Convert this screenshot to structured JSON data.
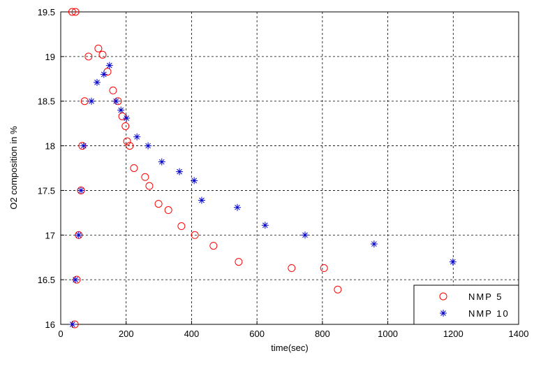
{
  "chart_data": {
    "type": "scatter",
    "xlabel": "time(sec)",
    "ylabel": "O2 composition in %",
    "xlim": [
      0,
      1400
    ],
    "ylim": [
      16,
      19.5
    ],
    "xticks": [
      0,
      200,
      400,
      600,
      800,
      1000,
      1200,
      1400
    ],
    "yticks": [
      16,
      16.5,
      17,
      17.5,
      18,
      18.5,
      19,
      19.5
    ],
    "grid": true,
    "legend": "lower right",
    "series": [
      {
        "name": "NMP 5",
        "color": "#ff0000",
        "marker": "circle",
        "x": [
          43,
          49,
          55,
          62,
          66,
          73,
          85,
          35,
          45,
          115,
          128,
          143,
          160,
          175,
          188,
          198,
          203,
          211,
          224,
          258,
          271,
          299,
          329,
          369,
          410,
          467,
          544,
          706,
          805,
          847
        ],
        "y": [
          16,
          16.5,
          17,
          17.5,
          18,
          18.5,
          19,
          19.5,
          19.5,
          19.09,
          19.02,
          18.83,
          18.62,
          18.5,
          18.33,
          18.22,
          18.05,
          18,
          17.75,
          17.65,
          17.55,
          17.35,
          17.28,
          17.1,
          17,
          16.88,
          16.7,
          16.63,
          16.63,
          16.39
        ]
      },
      {
        "name": "NMP 10",
        "color": "#0000cc",
        "marker": "star",
        "x": [
          36,
          45,
          55,
          62,
          70,
          94,
          111,
          132,
          149,
          169,
          184,
          201,
          233,
          267,
          309,
          363,
          408,
          431,
          540,
          625,
          747,
          958,
          1199
        ],
        "y": [
          16,
          16.5,
          17,
          17.5,
          18,
          18.5,
          18.71,
          18.8,
          18.9,
          18.5,
          18.4,
          18.31,
          18.1,
          18,
          17.82,
          17.71,
          17.61,
          17.39,
          17.31,
          17.11,
          17,
          16.9,
          16.7
        ]
      }
    ]
  }
}
